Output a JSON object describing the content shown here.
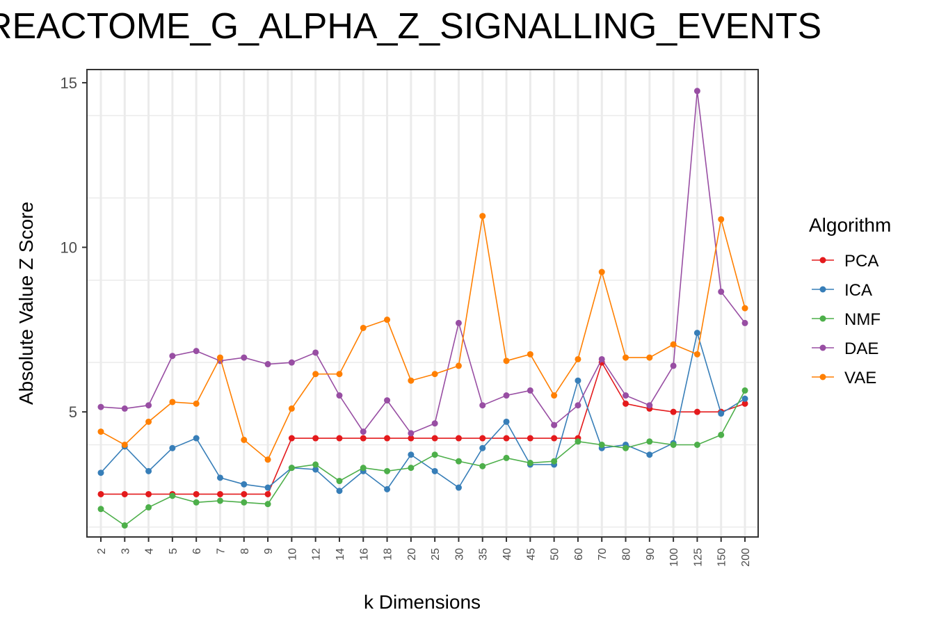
{
  "chart_data": {
    "type": "line",
    "title": "REACTOME_G_ALPHA_Z_SIGNALLING_EVENTS",
    "xlabel": "k Dimensions",
    "ylabel": "Absolute Value Z Score",
    "categories": [
      "2",
      "3",
      "4",
      "5",
      "6",
      "7",
      "8",
      "9",
      "10",
      "12",
      "14",
      "16",
      "18",
      "20",
      "25",
      "30",
      "35",
      "40",
      "45",
      "50",
      "60",
      "70",
      "80",
      "90",
      "100",
      "125",
      "150",
      "200"
    ],
    "yticks": [
      5,
      10,
      15
    ],
    "ylim": [
      1.2,
      15.4
    ],
    "grid": true,
    "legend": {
      "title": "Algorithm",
      "position": "right"
    },
    "series": [
      {
        "name": "PCA",
        "color": "#E41A1C",
        "values": [
          2.5,
          2.5,
          2.5,
          2.5,
          2.5,
          2.5,
          2.5,
          2.5,
          4.2,
          4.2,
          4.2,
          4.2,
          4.2,
          4.2,
          4.2,
          4.2,
          4.2,
          4.2,
          4.2,
          4.2,
          4.2,
          6.5,
          5.25,
          5.1,
          5.0,
          5.0,
          5.0,
          5.25
        ]
      },
      {
        "name": "ICA",
        "color": "#377EB8",
        "values": [
          3.15,
          3.95,
          3.2,
          3.9,
          4.2,
          3.0,
          2.8,
          2.7,
          3.3,
          3.25,
          2.6,
          3.2,
          2.65,
          3.7,
          3.2,
          2.7,
          3.9,
          4.7,
          3.4,
          3.4,
          5.95,
          3.9,
          4.0,
          3.7,
          4.05,
          7.4,
          4.95,
          5.4
        ]
      },
      {
        "name": "NMF",
        "color": "#4DAF4A",
        "values": [
          2.05,
          1.55,
          2.1,
          2.45,
          2.25,
          2.3,
          2.25,
          2.2,
          3.3,
          3.4,
          2.9,
          3.3,
          3.2,
          3.3,
          3.7,
          3.5,
          3.35,
          3.6,
          3.45,
          3.5,
          4.1,
          4.0,
          3.9,
          4.1,
          4.0,
          4.0,
          4.3,
          5.65
        ]
      },
      {
        "name": "DAE",
        "color": "#984EA3",
        "values": [
          5.15,
          5.1,
          5.2,
          6.7,
          6.85,
          6.55,
          6.65,
          6.45,
          6.5,
          6.8,
          5.5,
          4.4,
          5.35,
          4.35,
          4.65,
          7.7,
          5.2,
          5.5,
          5.65,
          4.6,
          5.2,
          6.6,
          5.5,
          5.2,
          6.4,
          14.75,
          8.65,
          7.7
        ]
      },
      {
        "name": "VAE",
        "color": "#FF7F00",
        "values": [
          4.4,
          4.0,
          4.7,
          5.3,
          5.25,
          6.65,
          4.15,
          3.55,
          5.1,
          6.15,
          6.15,
          7.55,
          7.8,
          5.95,
          6.15,
          6.4,
          10.95,
          6.55,
          6.75,
          5.5,
          6.6,
          9.25,
          6.65,
          6.65,
          7.05,
          6.75,
          10.85,
          8.15
        ]
      }
    ]
  }
}
